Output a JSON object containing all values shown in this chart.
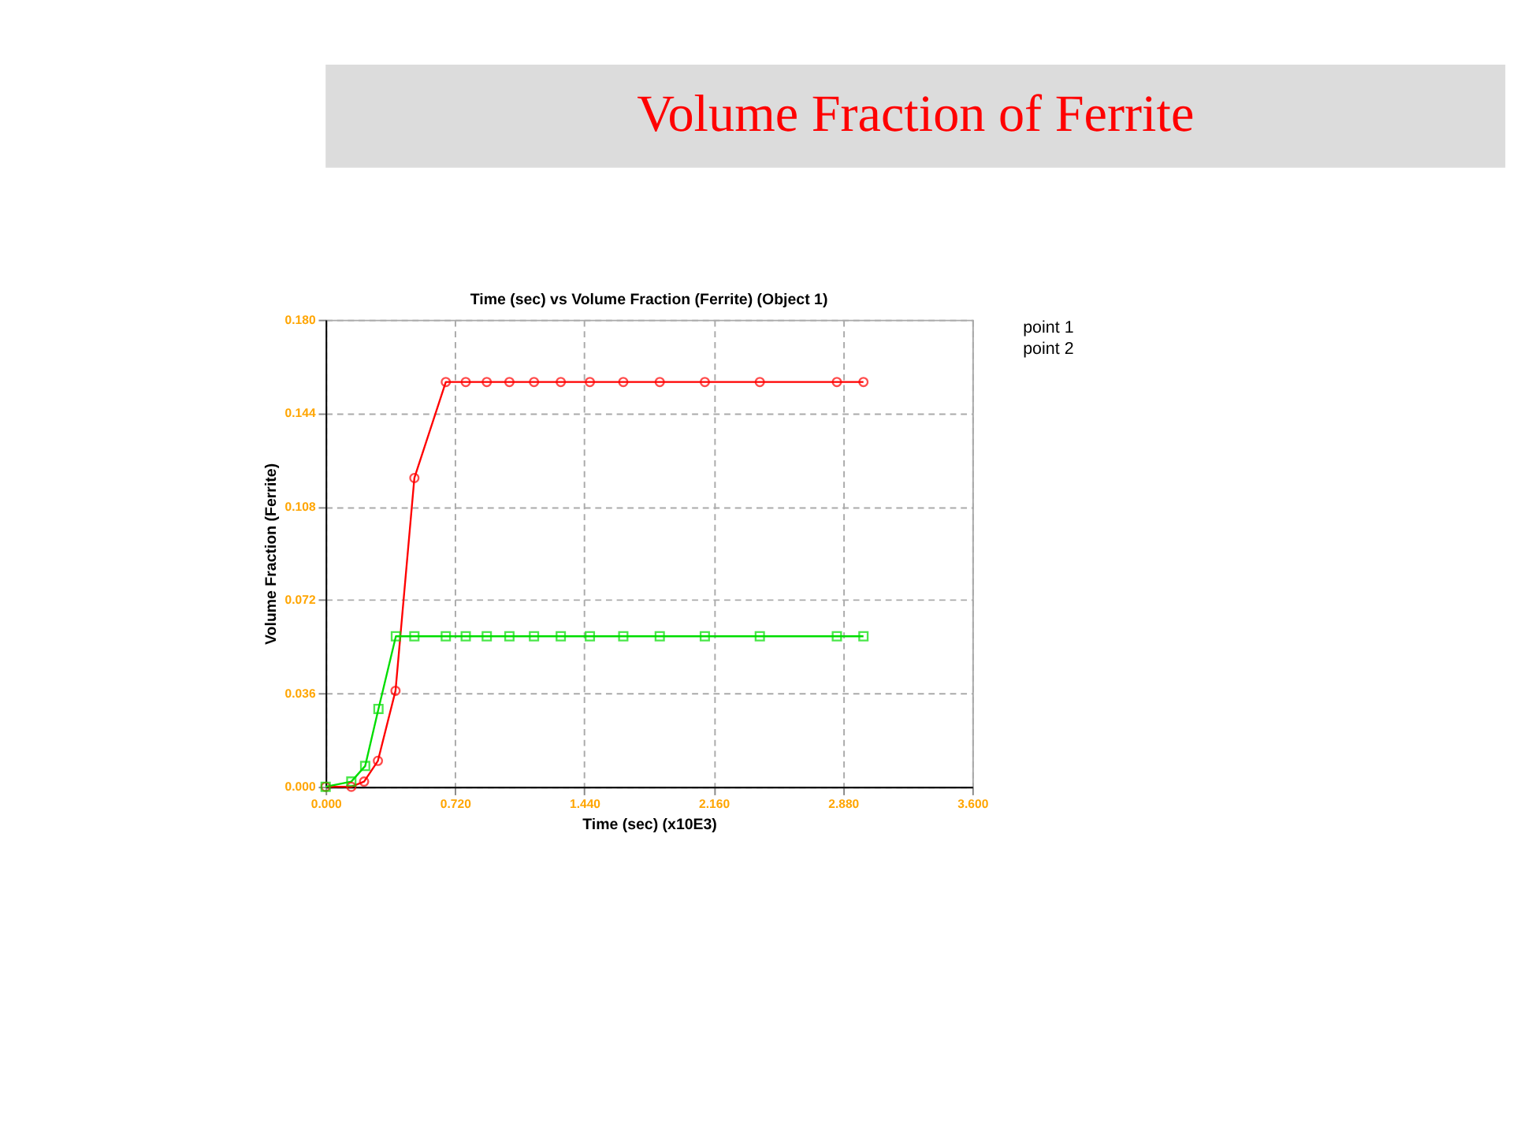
{
  "chart_data": {
    "type": "line",
    "title": "Volume Fraction  of Ferrite",
    "subtitle": "Time (sec) vs  Volume Fraction (Ferrite) (Object 1)",
    "xlabel": "Time (sec) (x10E3)",
    "ylabel": "Volume Fraction (Ferrite)",
    "xlim": [
      0,
      3.6
    ],
    "xticks": [
      {
        "value": 0,
        "label": "0.000"
      },
      {
        "value": 0.72,
        "label": "0.720"
      },
      {
        "value": 1.44,
        "label": "1.440"
      },
      {
        "value": 2.16,
        "label": "2.160"
      },
      {
        "value": 2.88,
        "label": "2.880"
      },
      {
        "value": 3.6,
        "label": "3.600"
      }
    ],
    "ylim": [
      0,
      0.18
    ],
    "yticks": [
      {
        "value": 0,
        "label": "0.000"
      },
      {
        "value": 0.036,
        "label": "0.036"
      },
      {
        "value": 0.072,
        "label": "0.072"
      },
      {
        "value": 0.108,
        "label": "0.108"
      },
      {
        "value": 0.144,
        "label": "0.144"
      },
      {
        "value": 0.18,
        "label": "0.180"
      }
    ],
    "grid": true,
    "legend": "top right",
    "line_style": "solid",
    "series": [
      {
        "name": "point 1",
        "color": "#ff0000",
        "marker": "circle",
        "x": [
          0,
          0.143,
          0.214,
          0.291,
          0.389,
          0.494,
          0.669,
          0.78,
          0.897,
          1.023,
          1.16,
          1.309,
          1.471,
          1.657,
          1.86,
          2.111,
          2.417,
          2.846,
          2.994
        ],
        "values": [
          0,
          0,
          0.002,
          0.01,
          0.037,
          0.119,
          0.156,
          0.156,
          0.156,
          0.156,
          0.156,
          0.156,
          0.156,
          0.156,
          0.156,
          0.156,
          0.156,
          0.156,
          0.156
        ]
      },
      {
        "name": "point 2",
        "color": "#00dd00",
        "marker": "square",
        "x": [
          0,
          0.143,
          0.22,
          0.294,
          0.391,
          0.494,
          0.669,
          0.78,
          0.897,
          1.023,
          1.16,
          1.309,
          1.471,
          1.657,
          1.86,
          2.111,
          2.417,
          2.846,
          2.994
        ],
        "values": [
          0,
          0.002,
          0.008,
          0.03,
          0.058,
          0.058,
          0.058,
          0.058,
          0.058,
          0.058,
          0.058,
          0.058,
          0.058,
          0.058,
          0.058,
          0.058,
          0.058,
          0.058,
          0.058
        ]
      }
    ]
  }
}
